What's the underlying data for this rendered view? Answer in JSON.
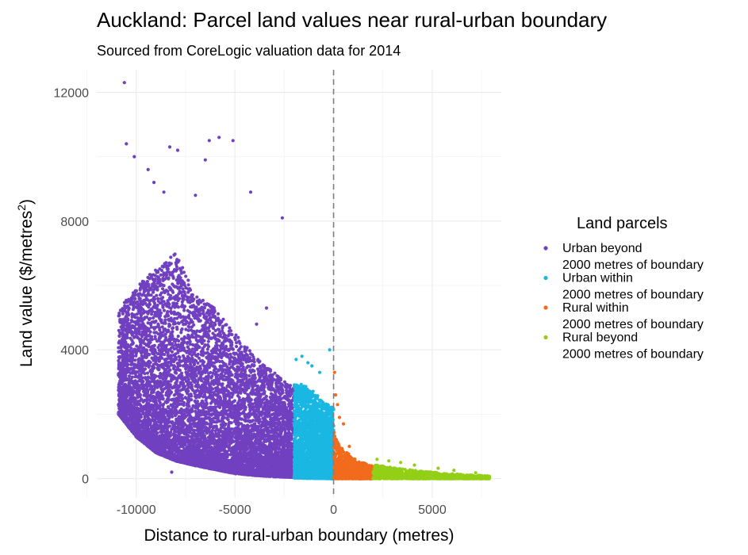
{
  "chart_data": {
    "type": "scatter",
    "title": "Auckland: Parcel land values near rural-urban boundary",
    "subtitle": "Sourced from CoreLogic valuation data for 2014",
    "xlabel": "Distance to rural-urban boundary (metres)",
    "ylabel_main": "Land value ($/metres",
    "ylabel_sup": "2",
    "ylabel_end": ")",
    "xlim": [
      -12000,
      8500
    ],
    "ylim": [
      -600,
      12700
    ],
    "x_ticks": [
      -10000,
      -5000,
      0,
      5000
    ],
    "x_tick_labels": [
      "-10000",
      "-5000",
      "0",
      "5000"
    ],
    "y_ticks": [
      0,
      4000,
      8000,
      12000
    ],
    "y_tick_labels": [
      "0",
      "4000",
      "8000",
      "12000"
    ],
    "grid": true,
    "reference_line": {
      "x": 0,
      "style": "dashed"
    },
    "legend": {
      "title": "Land parcels",
      "position": "right"
    },
    "series": [
      {
        "key": "urban-beyond",
        "name_line1": "Urban beyond",
        "name_line2": "2000 metres of boundary",
        "color": "#7040c0",
        "x_range": [
          -10900,
          -2000
        ],
        "envelope": [
          [
            -10900,
            5200
          ],
          [
            -10000,
            6000
          ],
          [
            -9000,
            6500
          ],
          [
            -8000,
            7000
          ],
          [
            -7000,
            5700
          ],
          [
            -6000,
            5300
          ],
          [
            -5000,
            4500
          ],
          [
            -4000,
            3800
          ],
          [
            -3000,
            3300
          ],
          [
            -2000,
            2800
          ]
        ],
        "baseline": [
          [
            -10900,
            2000
          ],
          [
            -10000,
            1300
          ],
          [
            -9000,
            800
          ],
          [
            -8000,
            550
          ],
          [
            -7000,
            400
          ],
          [
            -6000,
            280
          ],
          [
            -5000,
            160
          ],
          [
            -4000,
            100
          ],
          [
            -3000,
            60
          ],
          [
            -2000,
            40
          ]
        ],
        "outliers": [
          [
            -10600,
            12300
          ],
          [
            -10500,
            10400
          ],
          [
            -10100,
            10000
          ],
          [
            -9400,
            9600
          ],
          [
            -8300,
            10300
          ],
          [
            -7900,
            10200
          ],
          [
            -6300,
            10500
          ],
          [
            -5800,
            10600
          ],
          [
            -5100,
            10500
          ],
          [
            -6500,
            9900
          ],
          [
            -7000,
            8800
          ],
          [
            -4200,
            8900
          ],
          [
            -2600,
            8100
          ],
          [
            -9100,
            9200
          ],
          [
            -8600,
            8900
          ],
          [
            -8200,
            200
          ],
          [
            -3400,
            5300
          ],
          [
            -3900,
            4800
          ]
        ],
        "count": 8200
      },
      {
        "key": "urban-within",
        "name_line1": "Urban within",
        "name_line2": "2000 metres of boundary",
        "color": "#1ab7e3",
        "x_range": [
          -2000,
          0
        ],
        "envelope": [
          [
            -2000,
            3000
          ],
          [
            -1500,
            2900
          ],
          [
            -1000,
            2700
          ],
          [
            -500,
            2400
          ],
          [
            0,
            2200
          ]
        ],
        "baseline": [
          [
            -2000,
            20
          ],
          [
            0,
            0
          ]
        ],
        "outliers": [
          [
            -200,
            4000
          ],
          [
            -1600,
            3800
          ],
          [
            -1900,
            3700
          ],
          [
            -1100,
            3500
          ],
          [
            -700,
            3300
          ],
          [
            -1300,
            3600
          ]
        ],
        "count": 2600
      },
      {
        "key": "rural-within",
        "name_line1": "Rural within",
        "name_line2": "2000 metres of boundary",
        "color": "#f26b1d",
        "x_range": [
          0,
          2000
        ],
        "envelope": [
          [
            0,
            1500
          ],
          [
            300,
            1000
          ],
          [
            700,
            800
          ],
          [
            1200,
            550
          ],
          [
            2000,
            400
          ]
        ],
        "baseline": [
          [
            0,
            0
          ],
          [
            2000,
            0
          ]
        ],
        "outliers": [
          [
            50,
            3300
          ],
          [
            100,
            2600
          ],
          [
            200,
            2300
          ],
          [
            300,
            1900
          ],
          [
            500,
            1700
          ],
          [
            800,
            1000
          ]
        ],
        "count": 900
      },
      {
        "key": "rural-beyond",
        "name_line1": "Rural beyond",
        "name_line2": "2000 metres of boundary",
        "color": "#93cf16",
        "x_range": [
          2000,
          7900
        ],
        "envelope": [
          [
            2000,
            450
          ],
          [
            3000,
            340
          ],
          [
            4000,
            260
          ],
          [
            5000,
            200
          ],
          [
            6000,
            150
          ],
          [
            7000,
            110
          ],
          [
            7900,
            80
          ]
        ],
        "baseline": [
          [
            2000,
            0
          ],
          [
            7900,
            0
          ]
        ],
        "outliers": [
          [
            2200,
            600
          ],
          [
            2800,
            550
          ],
          [
            3400,
            500
          ],
          [
            4100,
            420
          ],
          [
            5300,
            320
          ],
          [
            6100,
            260
          ],
          [
            7200,
            180
          ],
          [
            7800,
            80
          ]
        ],
        "count": 1100
      }
    ]
  }
}
